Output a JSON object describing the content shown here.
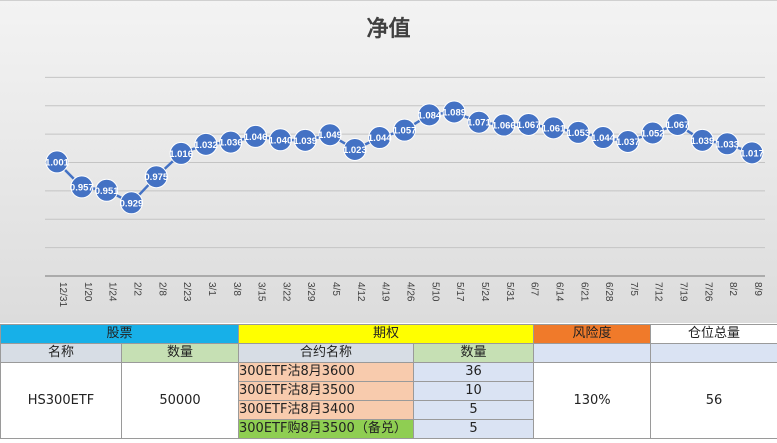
{
  "chart_data": {
    "type": "line",
    "title": "净值",
    "categories": [
      "12/31",
      "1/20",
      "1/24",
      "2/2",
      "2/8",
      "2/23",
      "3/1",
      "3/8",
      "3/15",
      "3/22",
      "3/29",
      "4/5",
      "4/12",
      "4/19",
      "4/26",
      "5/10",
      "5/17",
      "5/24",
      "5/31",
      "6/7",
      "6/14",
      "6/21",
      "6/28",
      "7/5",
      "7/12",
      "7/19",
      "7/26",
      "8/2",
      "8/9"
    ],
    "values": [
      1.001,
      0.957,
      0.951,
      0.929,
      0.975,
      1.016,
      1.032,
      1.036,
      1.046,
      1.04,
      1.039,
      1.049,
      1.023,
      1.044,
      1.057,
      1.084,
      1.089,
      1.071,
      1.066,
      1.067,
      1.061,
      1.053,
      1.044,
      1.037,
      1.052,
      1.067,
      1.039,
      1.033,
      1.017
    ],
    "data_labels": [
      "1.001",
      "0.957",
      "0.951",
      "0.929",
      "0.975",
      "1.016",
      "1.032",
      "1.036",
      "1.046",
      "1.040",
      "1.039",
      "1.049",
      "1.023",
      "1.044",
      "1.057",
      "1.084",
      "1.089",
      "1.071",
      "1.066",
      "1.067",
      "1.061",
      "1.053",
      "1.044",
      "1.037",
      "1.052",
      "1.067",
      "1.039",
      "1.033",
      "1.017"
    ],
    "ylim": [
      0.8,
      1.2
    ],
    "grid": true,
    "color": "#4472c4"
  },
  "table": {
    "headers": {
      "stock": "股票",
      "option": "期权",
      "risk": "风险度",
      "position": "仓位总量"
    },
    "subheaders": {
      "name": "名称",
      "qty": "数量",
      "contract": "合约名称",
      "contract_qty": "数量"
    },
    "stock": {
      "name": "HS300ETF",
      "qty": "50000"
    },
    "options": [
      {
        "name": "300ETF沽8月3600",
        "qty": "36",
        "color": "#f8cbad"
      },
      {
        "name": "300ETF沽8月3500",
        "qty": "10",
        "color": "#f8cbad"
      },
      {
        "name": "300ETF沽8月3400",
        "qty": "5",
        "color": "#f8cbad"
      },
      {
        "name": "300ETF购8月3500（备兑）",
        "qty": "5",
        "color": "#8fce52"
      }
    ],
    "risk": "130%",
    "position": "56"
  }
}
